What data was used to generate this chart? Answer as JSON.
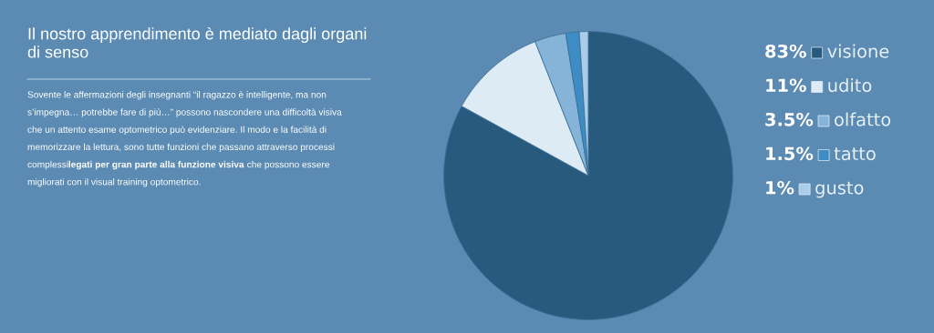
{
  "chart_data": {
    "type": "pie",
    "title": "Il nostro apprendimento è mediato dagli organi\ndi senso",
    "annotations": [
      "Sovente le affermazioni degli insegnanti “il ragazzo è intelligente, ma non\ns’impegna… potrebbe fare di più…” possono nascondere una difficoltà visiva\nche un attento esame optometrico può evidenziare. Il modo e la facilità di\nmemorizzare la lettura, sono tutte funzioni che passano attraverso processi\ncomplessi",
      "legati per gran parte alla funzione visiva",
      " che possono essere\nmigliorati con il visual training optometrico."
    ],
    "categories": [
      "visione",
      "udito",
      "olfatto",
      "tatto",
      "gusto"
    ],
    "values": [
      83,
      11,
      3.5,
      1.5,
      1
    ],
    "value_labels": [
      "83%",
      "11%",
      "3.5%",
      "1.5%",
      "1%"
    ],
    "colors": [
      "#285a7d",
      "#ddebf5",
      "#85b4d8",
      "#3d8cc4",
      "#a9cde8"
    ],
    "legend": "right"
  }
}
